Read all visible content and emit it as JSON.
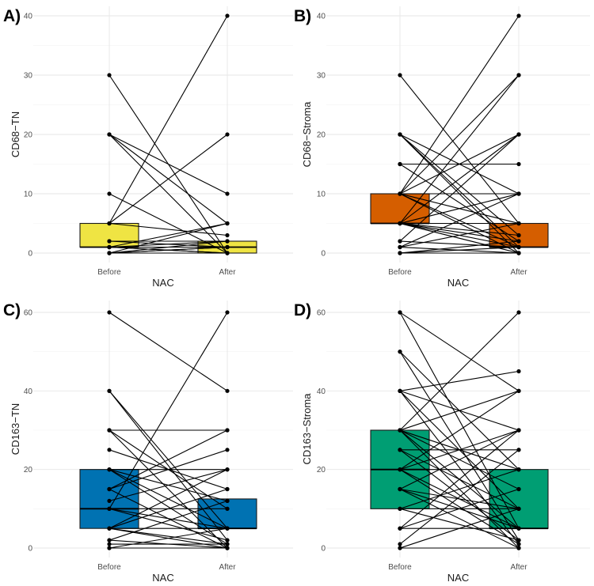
{
  "chart_data": [
    {
      "type": "box",
      "panel_label": "A)",
      "xlabel": "NAC",
      "ylabel": "CD68−TN",
      "categories": [
        "Before",
        "After"
      ],
      "ylim": [
        0,
        40
      ],
      "yticks": [
        0,
        10,
        20,
        30,
        40
      ],
      "fill_color": "#efe443",
      "box_stats": [
        {
          "category": "Before",
          "q1": 1,
          "median": 1,
          "q3": 5
        },
        {
          "category": "After",
          "q1": 0,
          "median": 1,
          "q3": 2
        }
      ],
      "pairs": [
        [
          30,
          0
        ],
        [
          20,
          0
        ],
        [
          20,
          10
        ],
        [
          20,
          5
        ],
        [
          10,
          0
        ],
        [
          5,
          40
        ],
        [
          5,
          20
        ],
        [
          5,
          3
        ],
        [
          2,
          1
        ],
        [
          2,
          2
        ],
        [
          1,
          0
        ],
        [
          1,
          5
        ],
        [
          1,
          1
        ],
        [
          1,
          2
        ],
        [
          1,
          0
        ],
        [
          1,
          1
        ],
        [
          0,
          2
        ],
        [
          0,
          1
        ],
        [
          0,
          5
        ],
        [
          0,
          0
        ],
        [
          0,
          1
        ]
      ]
    },
    {
      "type": "box",
      "panel_label": "B)",
      "xlabel": "NAC",
      "ylabel": "CD68−Stroma",
      "categories": [
        "Before",
        "After"
      ],
      "ylim": [
        0,
        40
      ],
      "yticks": [
        0,
        10,
        20,
        30,
        40
      ],
      "fill_color": "#d55e00",
      "box_stats": [
        {
          "category": "Before",
          "q1": 5,
          "median": 5,
          "q3": 10
        },
        {
          "category": "After",
          "q1": 1,
          "median": 1,
          "q3": 5
        }
      ],
      "pairs": [
        [
          30,
          5
        ],
        [
          20,
          0
        ],
        [
          20,
          10
        ],
        [
          20,
          3
        ],
        [
          20,
          1
        ],
        [
          15,
          15
        ],
        [
          15,
          2
        ],
        [
          10,
          40
        ],
        [
          10,
          30
        ],
        [
          10,
          20
        ],
        [
          10,
          10
        ],
        [
          10,
          5
        ],
        [
          10,
          1
        ],
        [
          10,
          0
        ],
        [
          5,
          30
        ],
        [
          5,
          20
        ],
        [
          5,
          10
        ],
        [
          5,
          5
        ],
        [
          5,
          2
        ],
        [
          5,
          1
        ],
        [
          5,
          0
        ],
        [
          5,
          3
        ],
        [
          2,
          20
        ],
        [
          2,
          1
        ],
        [
          1,
          10
        ],
        [
          1,
          5
        ],
        [
          1,
          0
        ],
        [
          0,
          1
        ],
        [
          0,
          2
        ],
        [
          0,
          0
        ]
      ]
    },
    {
      "type": "box",
      "panel_label": "C)",
      "xlabel": "NAC",
      "ylabel": "CD163−TN",
      "categories": [
        "Before",
        "After"
      ],
      "ylim": [
        0,
        60
      ],
      "yticks": [
        0,
        20,
        40,
        60
      ],
      "fill_color": "#0072b2",
      "box_stats": [
        {
          "category": "Before",
          "q1": 5,
          "median": 10,
          "q3": 20
        },
        {
          "category": "After",
          "q1": 5,
          "median": 5,
          "q3": 12.5
        }
      ],
      "pairs": [
        [
          60,
          40
        ],
        [
          40,
          5
        ],
        [
          40,
          2
        ],
        [
          30,
          30
        ],
        [
          30,
          10
        ],
        [
          30,
          0
        ],
        [
          25,
          15
        ],
        [
          20,
          20
        ],
        [
          20,
          12
        ],
        [
          20,
          5
        ],
        [
          20,
          1
        ],
        [
          15,
          30
        ],
        [
          15,
          25
        ],
        [
          15,
          0
        ],
        [
          12,
          20
        ],
        [
          10,
          60
        ],
        [
          10,
          10
        ],
        [
          10,
          5
        ],
        [
          10,
          2
        ],
        [
          5,
          20
        ],
        [
          5,
          15
        ],
        [
          5,
          5
        ],
        [
          5,
          1
        ],
        [
          5,
          0
        ],
        [
          2,
          12
        ],
        [
          2,
          0
        ],
        [
          1,
          1
        ],
        [
          0,
          0
        ],
        [
          0,
          5
        ]
      ]
    },
    {
      "type": "box",
      "panel_label": "D)",
      "xlabel": "NAC",
      "ylabel": "CD163−Stroma",
      "categories": [
        "Before",
        "After"
      ],
      "ylim": [
        0,
        60
      ],
      "yticks": [
        0,
        20,
        40,
        60
      ],
      "fill_color": "#009e73",
      "box_stats": [
        {
          "category": "Before",
          "q1": 10,
          "median": 20,
          "q3": 30
        },
        {
          "category": "After",
          "q1": 5,
          "median": 5,
          "q3": 20
        }
      ],
      "pairs": [
        [
          60,
          40
        ],
        [
          60,
          5
        ],
        [
          50,
          20
        ],
        [
          50,
          2
        ],
        [
          40,
          45
        ],
        [
          40,
          30
        ],
        [
          40,
          10
        ],
        [
          40,
          1
        ],
        [
          30,
          40
        ],
        [
          30,
          20
        ],
        [
          30,
          15
        ],
        [
          30,
          5
        ],
        [
          30,
          0
        ],
        [
          30,
          60
        ],
        [
          25,
          25
        ],
        [
          25,
          10
        ],
        [
          25,
          2
        ],
        [
          20,
          30
        ],
        [
          20,
          20
        ],
        [
          20,
          5
        ],
        [
          20,
          1
        ],
        [
          20,
          40
        ],
        [
          15,
          30
        ],
        [
          15,
          10
        ],
        [
          15,
          5
        ],
        [
          15,
          0
        ],
        [
          10,
          20
        ],
        [
          10,
          10
        ],
        [
          10,
          2
        ],
        [
          5,
          30
        ],
        [
          5,
          15
        ],
        [
          5,
          5
        ],
        [
          1,
          25
        ],
        [
          0,
          0
        ],
        [
          0,
          10
        ]
      ]
    }
  ]
}
